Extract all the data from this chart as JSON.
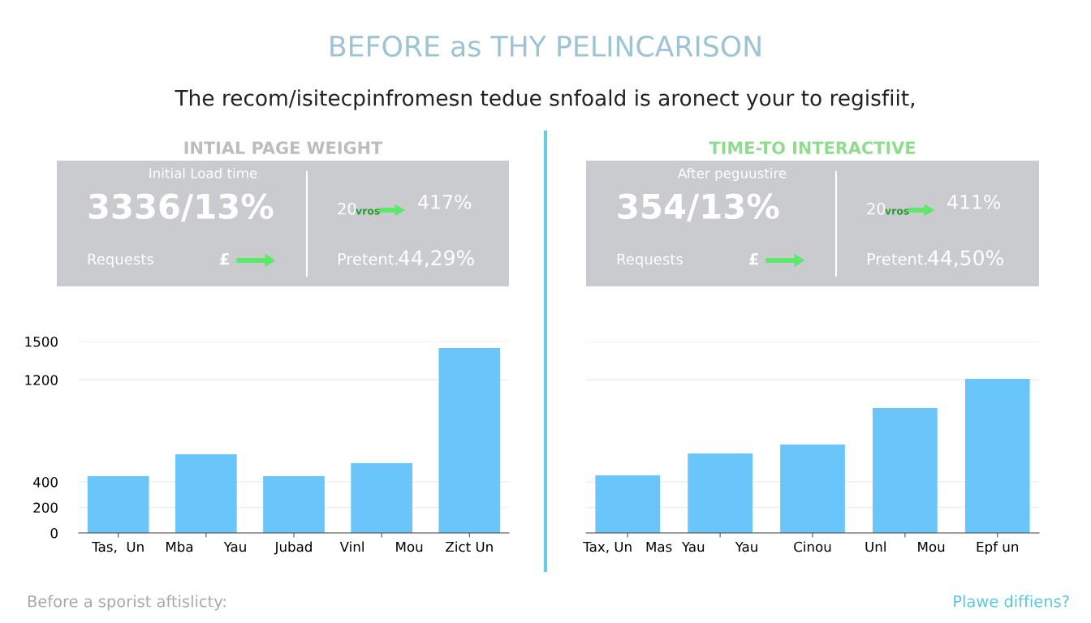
{
  "chart_data": [
    {
      "type": "other",
      "title": "BEFORE as THY PELINCARISON",
      "subtitle": "The recom/isitecpinfromesn tedue snfoald is aronect your to regisfiit,"
    },
    {
      "type": "other",
      "title": "INTIAL PAGE WEIGHT",
      "annotations": [
        "Initial Load time",
        "3336/13%",
        "Requests",
        "£",
        "20",
        "vros",
        "417%",
        "Pretent.",
        "44,29%"
      ]
    },
    {
      "type": "bar",
      "categories": [
        "Tas,  Un",
        "Mba       Yau",
        "Jubad",
        "Vinl       Mou",
        "Zict Un"
      ],
      "values": [
        445,
        617,
        445,
        547,
        1449
      ],
      "color": "#6ac6fa",
      "ylim": [
        0,
        1500
      ],
      "yticks": [
        0,
        200,
        400,
        1200,
        1500
      ],
      "grid": "y",
      "annotations": [
        "Before a sporist aftislicty:"
      ]
    },
    {
      "type": "other",
      "title": "TIME-TO INTERACTIVE",
      "annotations": [
        "After peguustire",
        "354/13%",
        "Requests",
        "£",
        "20",
        "vros",
        "411%",
        "Pretent.",
        "44,50%"
      ]
    },
    {
      "type": "bar",
      "categories": [
        "Tax, Un   Mas",
        "Yau       Yau",
        "Cinou",
        "Unl       Mou",
        "Epf un"
      ],
      "values": [
        451,
        623,
        693,
        979,
        1208
      ],
      "color": "#6ac6fa",
      "ylim": [
        0,
        1500
      ],
      "yticks": [
        0,
        200,
        400,
        1200,
        1500
      ],
      "grid": "y",
      "tick_labels": "x",
      "annotations": [
        "Plawe diffiens?"
      ]
    }
  ]
}
